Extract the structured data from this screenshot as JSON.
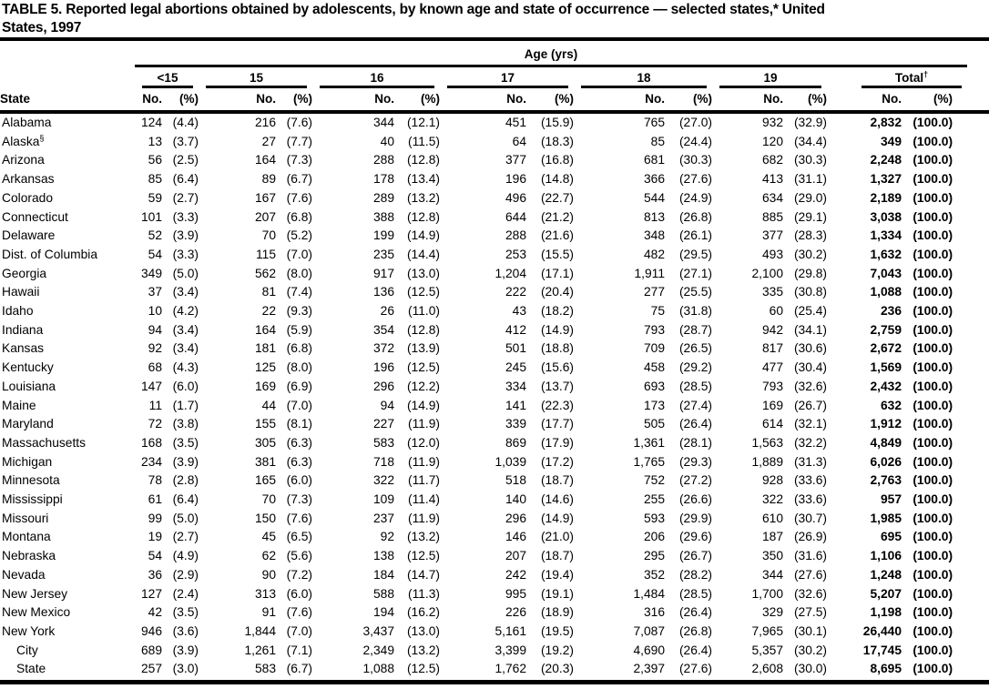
{
  "colors": {
    "ink": "#000000",
    "paper": "#ffffff"
  },
  "title": {
    "line1": "TABLE 5. Reported legal abortions obtained by adolescents, by known age and state of occurrence — selected states,* United",
    "line2": "States, 1997"
  },
  "table": {
    "age_group_header": "Age (yrs)",
    "state_header": "State",
    "col_no": "No.",
    "col_pct": "(%)",
    "groups": [
      {
        "label": "<15",
        "sup": ""
      },
      {
        "label": "15",
        "sup": ""
      },
      {
        "label": "16",
        "sup": ""
      },
      {
        "label": "17",
        "sup": ""
      },
      {
        "label": "18",
        "sup": ""
      },
      {
        "label": "19",
        "sup": ""
      },
      {
        "label": "Total",
        "sup": "†"
      }
    ],
    "rows": [
      {
        "state": "Alabama",
        "sup": "",
        "indent": false,
        "cells": [
          "124",
          "(4.4)",
          "216",
          "(7.6)",
          "344",
          "(12.1)",
          "451",
          "(15.9)",
          "765",
          "(27.0)",
          "932",
          "(32.9)",
          "2,832",
          "(100.0)"
        ]
      },
      {
        "state": "Alaska",
        "sup": "§",
        "indent": false,
        "cells": [
          "13",
          "(3.7)",
          "27",
          "(7.7)",
          "40",
          "(11.5)",
          "64",
          "(18.3)",
          "85",
          "(24.4)",
          "120",
          "(34.4)",
          "349",
          "(100.0)"
        ]
      },
      {
        "state": "Arizona",
        "sup": "",
        "indent": false,
        "cells": [
          "56",
          "(2.5)",
          "164",
          "(7.3)",
          "288",
          "(12.8)",
          "377",
          "(16.8)",
          "681",
          "(30.3)",
          "682",
          "(30.3)",
          "2,248",
          "(100.0)"
        ]
      },
      {
        "state": "Arkansas",
        "sup": "",
        "indent": false,
        "cells": [
          "85",
          "(6.4)",
          "89",
          "(6.7)",
          "178",
          "(13.4)",
          "196",
          "(14.8)",
          "366",
          "(27.6)",
          "413",
          "(31.1)",
          "1,327",
          "(100.0)"
        ]
      },
      {
        "state": "Colorado",
        "sup": "",
        "indent": false,
        "cells": [
          "59",
          "(2.7)",
          "167",
          "(7.6)",
          "289",
          "(13.2)",
          "496",
          "(22.7)",
          "544",
          "(24.9)",
          "634",
          "(29.0)",
          "2,189",
          "(100.0)"
        ]
      },
      {
        "state": "Connecticut",
        "sup": "",
        "indent": false,
        "cells": [
          "101",
          "(3.3)",
          "207",
          "(6.8)",
          "388",
          "(12.8)",
          "644",
          "(21.2)",
          "813",
          "(26.8)",
          "885",
          "(29.1)",
          "3,038",
          "(100.0)"
        ]
      },
      {
        "state": "Delaware",
        "sup": "",
        "indent": false,
        "cells": [
          "52",
          "(3.9)",
          "70",
          "(5.2)",
          "199",
          "(14.9)",
          "288",
          "(21.6)",
          "348",
          "(26.1)",
          "377",
          "(28.3)",
          "1,334",
          "(100.0)"
        ]
      },
      {
        "state": "Dist. of Columbia",
        "sup": "",
        "indent": false,
        "cells": [
          "54",
          "(3.3)",
          "115",
          "(7.0)",
          "235",
          "(14.4)",
          "253",
          "(15.5)",
          "482",
          "(29.5)",
          "493",
          "(30.2)",
          "1,632",
          "(100.0)"
        ]
      },
      {
        "state": "Georgia",
        "sup": "",
        "indent": false,
        "cells": [
          "349",
          "(5.0)",
          "562",
          "(8.0)",
          "917",
          "(13.0)",
          "1,204",
          "(17.1)",
          "1,911",
          "(27.1)",
          "2,100",
          "(29.8)",
          "7,043",
          "(100.0)"
        ]
      },
      {
        "state": "Hawaii",
        "sup": "",
        "indent": false,
        "cells": [
          "37",
          "(3.4)",
          "81",
          "(7.4)",
          "136",
          "(12.5)",
          "222",
          "(20.4)",
          "277",
          "(25.5)",
          "335",
          "(30.8)",
          "1,088",
          "(100.0)"
        ]
      },
      {
        "state": "Idaho",
        "sup": "",
        "indent": false,
        "cells": [
          "10",
          "(4.2)",
          "22",
          "(9.3)",
          "26",
          "(11.0)",
          "43",
          "(18.2)",
          "75",
          "(31.8)",
          "60",
          "(25.4)",
          "236",
          "(100.0)"
        ]
      },
      {
        "state": "Indiana",
        "sup": "",
        "indent": false,
        "cells": [
          "94",
          "(3.4)",
          "164",
          "(5.9)",
          "354",
          "(12.8)",
          "412",
          "(14.9)",
          "793",
          "(28.7)",
          "942",
          "(34.1)",
          "2,759",
          "(100.0)"
        ]
      },
      {
        "state": "Kansas",
        "sup": "",
        "indent": false,
        "cells": [
          "92",
          "(3.4)",
          "181",
          "(6.8)",
          "372",
          "(13.9)",
          "501",
          "(18.8)",
          "709",
          "(26.5)",
          "817",
          "(30.6)",
          "2,672",
          "(100.0)"
        ]
      },
      {
        "state": "Kentucky",
        "sup": "",
        "indent": false,
        "cells": [
          "68",
          "(4.3)",
          "125",
          "(8.0)",
          "196",
          "(12.5)",
          "245",
          "(15.6)",
          "458",
          "(29.2)",
          "477",
          "(30.4)",
          "1,569",
          "(100.0)"
        ]
      },
      {
        "state": "Louisiana",
        "sup": "",
        "indent": false,
        "cells": [
          "147",
          "(6.0)",
          "169",
          "(6.9)",
          "296",
          "(12.2)",
          "334",
          "(13.7)",
          "693",
          "(28.5)",
          "793",
          "(32.6)",
          "2,432",
          "(100.0)"
        ]
      },
      {
        "state": "Maine",
        "sup": "",
        "indent": false,
        "cells": [
          "11",
          "(1.7)",
          "44",
          "(7.0)",
          "94",
          "(14.9)",
          "141",
          "(22.3)",
          "173",
          "(27.4)",
          "169",
          "(26.7)",
          "632",
          "(100.0)"
        ]
      },
      {
        "state": "Maryland",
        "sup": "",
        "indent": false,
        "cells": [
          "72",
          "(3.8)",
          "155",
          "(8.1)",
          "227",
          "(11.9)",
          "339",
          "(17.7)",
          "505",
          "(26.4)",
          "614",
          "(32.1)",
          "1,912",
          "(100.0)"
        ]
      },
      {
        "state": "Massachusetts",
        "sup": "",
        "indent": false,
        "cells": [
          "168",
          "(3.5)",
          "305",
          "(6.3)",
          "583",
          "(12.0)",
          "869",
          "(17.9)",
          "1,361",
          "(28.1)",
          "1,563",
          "(32.2)",
          "4,849",
          "(100.0)"
        ]
      },
      {
        "state": "Michigan",
        "sup": "",
        "indent": false,
        "cells": [
          "234",
          "(3.9)",
          "381",
          "(6.3)",
          "718",
          "(11.9)",
          "1,039",
          "(17.2)",
          "1,765",
          "(29.3)",
          "1,889",
          "(31.3)",
          "6,026",
          "(100.0)"
        ]
      },
      {
        "state": "Minnesota",
        "sup": "",
        "indent": false,
        "cells": [
          "78",
          "(2.8)",
          "165",
          "(6.0)",
          "322",
          "(11.7)",
          "518",
          "(18.7)",
          "752",
          "(27.2)",
          "928",
          "(33.6)",
          "2,763",
          "(100.0)"
        ]
      },
      {
        "state": "Mississippi",
        "sup": "",
        "indent": false,
        "cells": [
          "61",
          "(6.4)",
          "70",
          "(7.3)",
          "109",
          "(11.4)",
          "140",
          "(14.6)",
          "255",
          "(26.6)",
          "322",
          "(33.6)",
          "957",
          "(100.0)"
        ]
      },
      {
        "state": "Missouri",
        "sup": "",
        "indent": false,
        "cells": [
          "99",
          "(5.0)",
          "150",
          "(7.6)",
          "237",
          "(11.9)",
          "296",
          "(14.9)",
          "593",
          "(29.9)",
          "610",
          "(30.7)",
          "1,985",
          "(100.0)"
        ]
      },
      {
        "state": "Montana",
        "sup": "",
        "indent": false,
        "cells": [
          "19",
          "(2.7)",
          "45",
          "(6.5)",
          "92",
          "(13.2)",
          "146",
          "(21.0)",
          "206",
          "(29.6)",
          "187",
          "(26.9)",
          "695",
          "(100.0)"
        ]
      },
      {
        "state": "Nebraska",
        "sup": "",
        "indent": false,
        "cells": [
          "54",
          "(4.9)",
          "62",
          "(5.6)",
          "138",
          "(12.5)",
          "207",
          "(18.7)",
          "295",
          "(26.7)",
          "350",
          "(31.6)",
          "1,106",
          "(100.0)"
        ]
      },
      {
        "state": "Nevada",
        "sup": "",
        "indent": false,
        "cells": [
          "36",
          "(2.9)",
          "90",
          "(7.2)",
          "184",
          "(14.7)",
          "242",
          "(19.4)",
          "352",
          "(28.2)",
          "344",
          "(27.6)",
          "1,248",
          "(100.0)"
        ]
      },
      {
        "state": "New Jersey",
        "sup": "",
        "indent": false,
        "cells": [
          "127",
          "(2.4)",
          "313",
          "(6.0)",
          "588",
          "(11.3)",
          "995",
          "(19.1)",
          "1,484",
          "(28.5)",
          "1,700",
          "(32.6)",
          "5,207",
          "(100.0)"
        ]
      },
      {
        "state": "New Mexico",
        "sup": "",
        "indent": false,
        "cells": [
          "42",
          "(3.5)",
          "91",
          "(7.6)",
          "194",
          "(16.2)",
          "226",
          "(18.9)",
          "316",
          "(26.4)",
          "329",
          "(27.5)",
          "1,198",
          "(100.0)"
        ]
      },
      {
        "state": "New York",
        "sup": "",
        "indent": false,
        "cells": [
          "946",
          "(3.6)",
          "1,844",
          "(7.0)",
          "3,437",
          "(13.0)",
          "5,161",
          "(19.5)",
          "7,087",
          "(26.8)",
          "7,965",
          "(30.1)",
          "26,440",
          "(100.0)"
        ]
      },
      {
        "state": "City",
        "sup": "",
        "indent": true,
        "cells": [
          "689",
          "(3.9)",
          "1,261",
          "(7.1)",
          "2,349",
          "(13.2)",
          "3,399",
          "(19.2)",
          "4,690",
          "(26.4)",
          "5,357",
          "(30.2)",
          "17,745",
          "(100.0)"
        ]
      },
      {
        "state": "State",
        "sup": "",
        "indent": true,
        "cells": [
          "257",
          "(3.0)",
          "583",
          "(6.7)",
          "1,088",
          "(12.5)",
          "1,762",
          "(20.3)",
          "2,397",
          "(27.6)",
          "2,608",
          "(30.0)",
          "8,695",
          "(100.0)"
        ]
      }
    ]
  }
}
